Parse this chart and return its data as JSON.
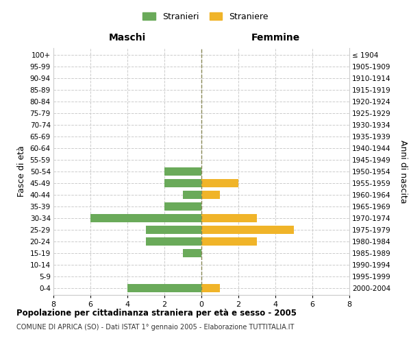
{
  "age_groups": [
    "0-4",
    "5-9",
    "10-14",
    "15-19",
    "20-24",
    "25-29",
    "30-34",
    "35-39",
    "40-44",
    "45-49",
    "50-54",
    "55-59",
    "60-64",
    "65-69",
    "70-74",
    "75-79",
    "80-84",
    "85-89",
    "90-94",
    "95-99",
    "100+"
  ],
  "birth_years": [
    "2000-2004",
    "1995-1999",
    "1990-1994",
    "1985-1989",
    "1980-1984",
    "1975-1979",
    "1970-1974",
    "1965-1969",
    "1960-1964",
    "1955-1959",
    "1950-1954",
    "1945-1949",
    "1940-1944",
    "1935-1939",
    "1930-1934",
    "1925-1929",
    "1920-1924",
    "1915-1919",
    "1910-1914",
    "1905-1909",
    "≤ 1904"
  ],
  "males": [
    4,
    0,
    0,
    1,
    3,
    3,
    6,
    2,
    1,
    2,
    2,
    0,
    0,
    0,
    0,
    0,
    0,
    0,
    0,
    0,
    0
  ],
  "females": [
    1,
    0,
    0,
    0,
    3,
    5,
    3,
    0,
    1,
    2,
    0,
    0,
    0,
    0,
    0,
    0,
    0,
    0,
    0,
    0,
    0
  ],
  "male_color": "#6aaa5a",
  "female_color": "#f0b429",
  "title": "Popolazione per cittadinanza straniera per età e sesso - 2005",
  "subtitle": "COMUNE DI APRICA (SO) - Dati ISTAT 1° gennaio 2005 - Elaborazione TUTTITALIA.IT",
  "ylabel_left": "Fasce di età",
  "ylabel_right": "Anni di nascita",
  "xlabel_left": "Maschi",
  "xlabel_right": "Femmine",
  "legend_male": "Stranieri",
  "legend_female": "Straniere",
  "xlim": 8,
  "background_color": "#ffffff",
  "grid_color": "#cccccc"
}
